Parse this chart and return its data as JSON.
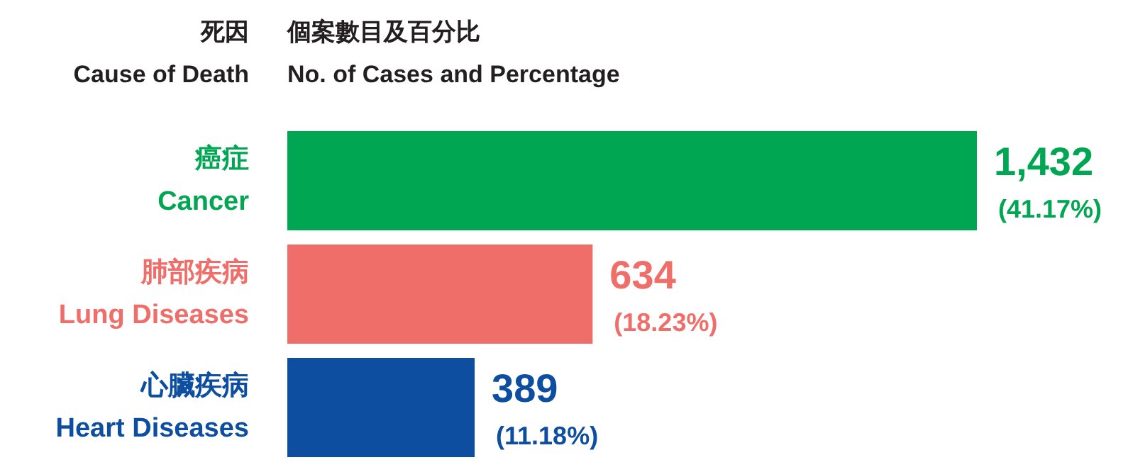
{
  "chart_data": {
    "type": "bar",
    "orientation": "horizontal",
    "ylabel": "死因\nCause of Death",
    "xlabel": "個案數目及百分比\nNo. of Cases and Percentage",
    "categories": [
      "癌症\nCancer",
      "肺部疾病\nLung Diseases",
      "心臟疾病\nHeart Diseases"
    ],
    "values": [
      1432,
      634,
      389
    ],
    "colors": [
      "#00a651",
      "#f06e6a",
      "#0d4ea0"
    ],
    "value_labels": [
      "1,432\n(41.17%)",
      "634\n(18.23%)",
      "389\n(11.18%)"
    ]
  }
}
